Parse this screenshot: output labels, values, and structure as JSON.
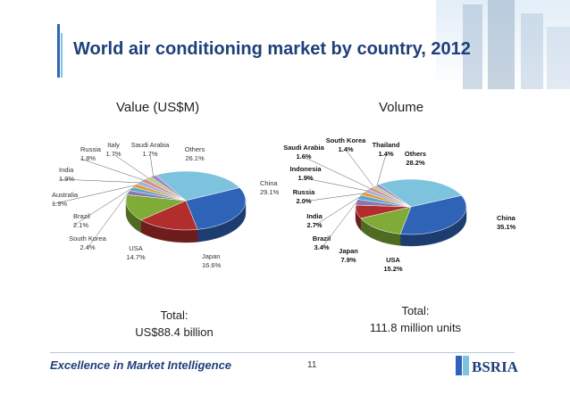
{
  "slide": {
    "title": "World air conditioning market by country, 2012",
    "footer": "Excellence in Market Intelligence",
    "page_number": "11",
    "logo_text": "BSRIA"
  },
  "colors": {
    "title": "#1f3f7a",
    "China": "#2f63b7",
    "Japan": "#b22d2d",
    "USA": "#7fab36",
    "Others": "#7ec3de",
    "small": "#8a77b0"
  },
  "chart_data": [
    {
      "type": "pie",
      "title": "Value (US$M)",
      "total_label": "Total:",
      "total_value": "US$88.4 billion",
      "slices": [
        {
          "name": "China",
          "value": 29.1,
          "label": "29.1%"
        },
        {
          "name": "Japan",
          "value": 16.6,
          "label": "16.6%"
        },
        {
          "name": "USA",
          "value": 14.7,
          "label": "14.7%"
        },
        {
          "name": "South Korea",
          "value": 2.4,
          "label": "2.4%"
        },
        {
          "name": "Brazil",
          "value": 2.1,
          "label": "2.1%"
        },
        {
          "name": "Australia",
          "value": 1.9,
          "label": "1.9%"
        },
        {
          "name": "India",
          "value": 1.9,
          "label": "1.9%"
        },
        {
          "name": "Russia",
          "value": 1.8,
          "label": "1.8%"
        },
        {
          "name": "Italy",
          "value": 1.7,
          "label": "1.7%"
        },
        {
          "name": "Saudi Arabia",
          "value": 1.7,
          "label": "1.7%"
        },
        {
          "name": "Others",
          "value": 26.1,
          "label": "26.1%"
        }
      ]
    },
    {
      "type": "pie",
      "title": "Volume",
      "total_label": "Total:",
      "total_value": "111.8 million units",
      "slices": [
        {
          "name": "China",
          "value": 35.1,
          "label": "35.1%"
        },
        {
          "name": "USA",
          "value": 15.2,
          "label": "15.2%"
        },
        {
          "name": "Japan",
          "value": 7.9,
          "label": "7.9%"
        },
        {
          "name": "Brazil",
          "value": 3.4,
          "label": "3.4%"
        },
        {
          "name": "India",
          "value": 2.7,
          "label": "2.7%"
        },
        {
          "name": "Russia",
          "value": 2.0,
          "label": "2.0%"
        },
        {
          "name": "Indonesia",
          "value": 1.9,
          "label": "1.9%"
        },
        {
          "name": "Saudi Arabia",
          "value": 1.6,
          "label": "1.6%"
        },
        {
          "name": "South Korea",
          "value": 1.4,
          "label": "1.4%"
        },
        {
          "name": "Thailand",
          "value": 1.4,
          "label": "1.4%"
        },
        {
          "name": "Others",
          "value": 28.2,
          "label": "28.2%"
        }
      ]
    }
  ]
}
